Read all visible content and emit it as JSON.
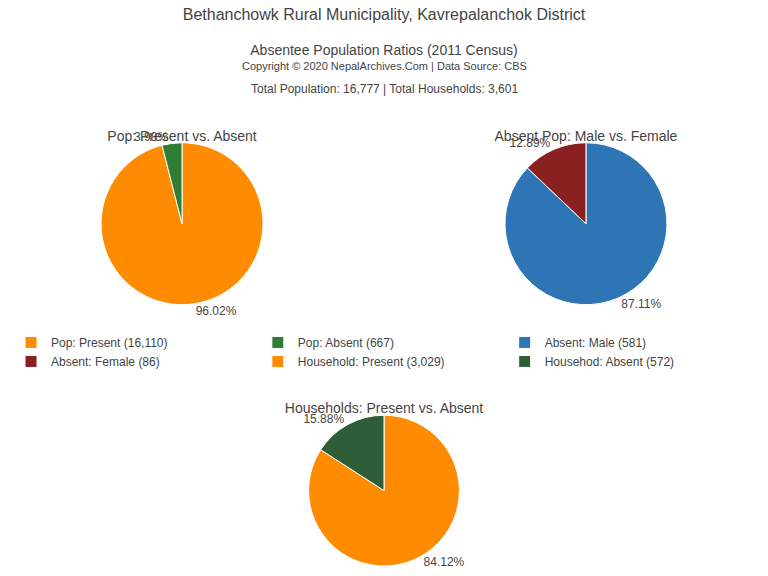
{
  "title": "Bethanchowk Rural Municipality, Kavrepalanchok District",
  "subtitle": "Absentee Population Ratios (2011 Census)",
  "annotations": [
    "Copyright © 2020 NepalArchives.Com | Data Source: CBS",
    "Total Population: 16,777 | Total Households: 3,601"
  ],
  "legend": "center",
  "chart_data": [
    {
      "type": "pie",
      "title": "Pop: Present vs. Absent",
      "categories": [
        "Pop: Present (16,110)",
        "Pop: Absent (667)"
      ],
      "values": [
        96.02,
        3.98
      ],
      "value_labels": [
        "96.02%",
        "3.98%"
      ],
      "colors": [
        "#FF8C00",
        "#2E7D32"
      ]
    },
    {
      "type": "pie",
      "title": "Absent Pop: Male vs. Female",
      "categories": [
        "Absent: Male (581)",
        "Absent: Female (86)"
      ],
      "values": [
        87.11,
        12.89
      ],
      "value_labels": [
        "87.11%",
        "12.89%"
      ],
      "colors": [
        "#2E75B6",
        "#8B2020"
      ]
    },
    {
      "type": "pie",
      "title": "Households: Present vs. Absent",
      "categories": [
        "Household: Present (3,029)",
        "Househod: Absent (572)"
      ],
      "values": [
        84.12,
        15.88
      ],
      "value_labels": [
        "84.12%",
        "15.88%"
      ],
      "colors": [
        "#FF8C00",
        "#2E5E38"
      ]
    }
  ]
}
